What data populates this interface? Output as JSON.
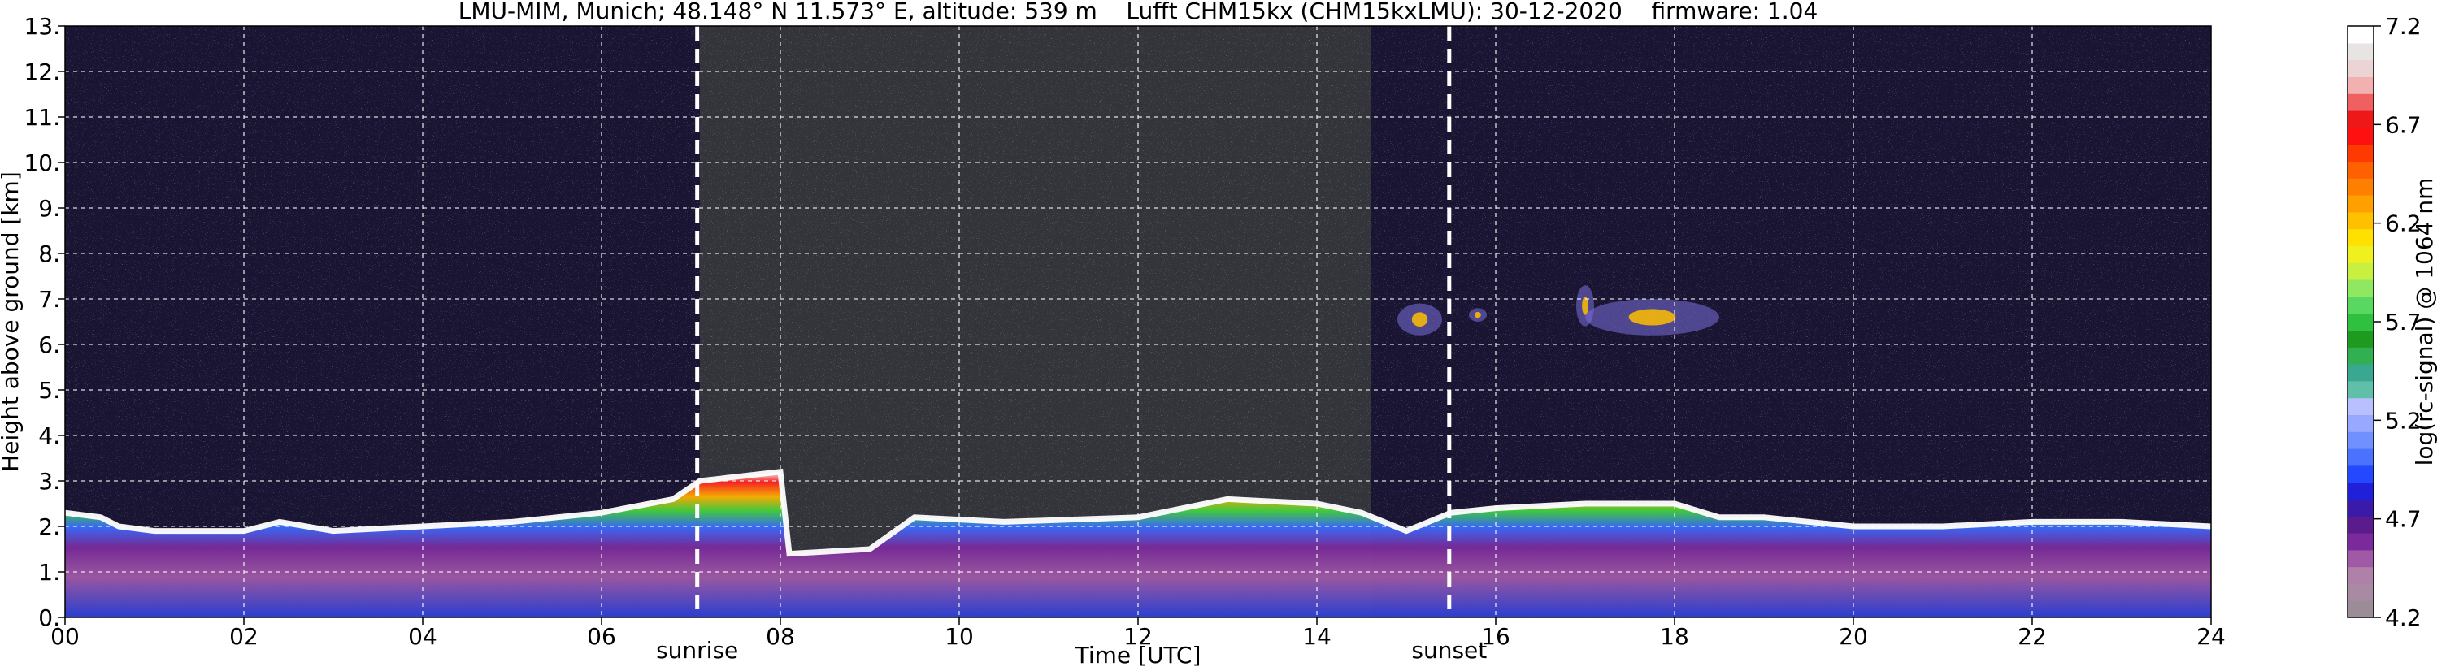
{
  "chart_data": [
    {
      "type": "heatmap",
      "title": "LMU-MIM, Munich; 48.148° N 11.573° E, altitude: 539 m    Lufft CHM15kx (CHM15kxLMU): 30-12-2020    firmware: 1.04",
      "xlabel": "Time [UTC]",
      "ylabel": "Height above ground [km]",
      "xlim": [
        0,
        24
      ],
      "ylim": [
        0,
        13
      ],
      "x_ticks": [
        0,
        2,
        4,
        6,
        8,
        10,
        12,
        14,
        16,
        18,
        20,
        22,
        24
      ],
      "x_tick_labels": [
        "00",
        "02",
        "04",
        "06",
        "08",
        "10",
        "12",
        "14",
        "16",
        "18",
        "20",
        "22",
        "24"
      ],
      "y_ticks": [
        0,
        1,
        2,
        3,
        4,
        5,
        6,
        7,
        8,
        9,
        10,
        11,
        12,
        13
      ],
      "y_tick_labels": [
        "0.",
        "1.",
        "2.",
        "3.",
        "4.",
        "5.",
        "6.",
        "7.",
        "8.",
        "9.",
        "10.",
        "11.",
        "12.",
        "13."
      ],
      "grid": true,
      "background_color": "#1a1433",
      "annotations": [
        {
          "label": "sunrise",
          "x": 7.07
        },
        {
          "label": "sunset",
          "x": 15.48
        }
      ],
      "features": {
        "boundary_layer_top_km": [
          [
            0.0,
            2.3
          ],
          [
            0.4,
            2.2
          ],
          [
            0.6,
            2.0
          ],
          [
            1.0,
            1.9
          ],
          [
            2.0,
            1.9
          ],
          [
            2.4,
            2.1
          ],
          [
            3.0,
            1.9
          ],
          [
            4.0,
            2.0
          ],
          [
            5.0,
            2.1
          ],
          [
            6.0,
            2.3
          ],
          [
            6.8,
            2.6
          ],
          [
            7.1,
            3.0
          ],
          [
            8.0,
            3.2
          ],
          [
            8.1,
            1.4
          ],
          [
            9.0,
            1.5
          ],
          [
            9.5,
            2.2
          ],
          [
            10.5,
            2.1
          ],
          [
            12.0,
            2.2
          ],
          [
            13.0,
            2.6
          ],
          [
            14.0,
            2.5
          ],
          [
            14.5,
            2.3
          ],
          [
            15.0,
            1.9
          ],
          [
            15.5,
            2.3
          ],
          [
            16.0,
            2.4
          ],
          [
            17.0,
            2.5
          ],
          [
            18.0,
            2.5
          ],
          [
            18.5,
            2.2
          ],
          [
            19.0,
            2.2
          ],
          [
            20.0,
            2.0
          ],
          [
            21.0,
            2.0
          ],
          [
            22.0,
            2.1
          ],
          [
            23.0,
            2.1
          ],
          [
            24.0,
            2.0
          ]
        ],
        "cloud_patches_km": [
          {
            "x": [
              14.9,
              15.4
            ],
            "y": [
              6.2,
              6.9
            ]
          },
          {
            "x": [
              15.7,
              15.9
            ],
            "y": [
              6.5,
              6.8
            ]
          },
          {
            "x": [
              16.9,
              17.1
            ],
            "y": [
              6.4,
              7.3
            ]
          },
          {
            "x": [
              17.0,
              18.5
            ],
            "y": [
              6.2,
              7.0
            ]
          }
        ],
        "noise_zone_x": [
          7.1,
          14.6
        ]
      }
    },
    {
      "type": "heatmap",
      "ylabel": "log(rc-signal) @ 1064 nm",
      "ylim": [
        4.2,
        7.2
      ],
      "ticks": [
        4.2,
        4.7,
        5.2,
        5.7,
        6.2,
        6.7,
        7.2
      ],
      "tick_labels": [
        "4.2",
        "4.7",
        "5.2",
        "5.7",
        "6.2",
        "6.7",
        "7.2"
      ],
      "colors": [
        "#9b8c98",
        "#a88aa3",
        "#b081a8",
        "#a05aa5",
        "#7a2a9a",
        "#5a1c8c",
        "#3a1aa8",
        "#2020d8",
        "#2448ff",
        "#4a72ff",
        "#7090ff",
        "#98a8ff",
        "#b8c0ff",
        "#5fbfa8",
        "#3aa890",
        "#30b050",
        "#1e9a1e",
        "#30c040",
        "#58d860",
        "#90e860",
        "#c8f040",
        "#f0f020",
        "#ffe000",
        "#ffc000",
        "#ffa000",
        "#ff8000",
        "#ff6000",
        "#ff3a00",
        "#ff1010",
        "#ee1818",
        "#f06060",
        "#f2b0b0",
        "#ecd4d4",
        "#e8e4e4",
        "#ffffff"
      ]
    }
  ]
}
